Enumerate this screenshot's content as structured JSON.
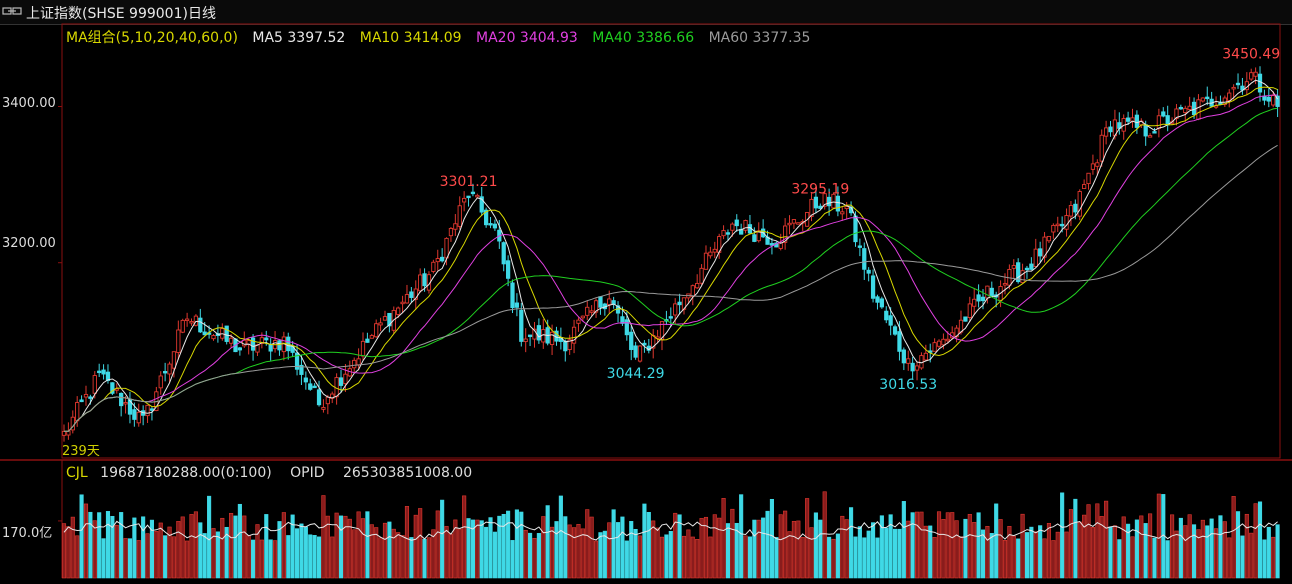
{
  "window": {
    "title": "上证指数(SHSE 999001)日线"
  },
  "legend": {
    "group": "MA组合(5,10,20,40,60,0)",
    "ma5": "MA5 3397.52",
    "ma10": "MA10 3414.09",
    "ma20": "MA20 3404.93",
    "ma40": "MA40 3386.66",
    "ma60": "MA60 3377.35"
  },
  "price_axis": {
    "tick_3400": "3400.00",
    "tick_3200": "3200.00",
    "days_label": "239天"
  },
  "volume_legend": {
    "cjl": "CJL",
    "cjl_value": "19687180288.00(0:100)",
    "opid": "OPID",
    "opid_value": "265303851008.00"
  },
  "volume_axis": {
    "tick": "170.0亿"
  },
  "annotations": {
    "high1": "3301.21",
    "low1": "3044.29",
    "high2": "3295.19",
    "low2": "3016.53",
    "high3": "3450.49"
  },
  "colors": {
    "up": "#e0382f",
    "down": "#3fd9e6",
    "ma5": "#e8e8e8",
    "ma10": "#d8d800",
    "ma20": "#e040e0",
    "ma40": "#20d020",
    "ma60": "#9a9a9a",
    "frame": "#8a1010"
  },
  "chart_data": [
    {
      "type": "candlestick",
      "title": "上证指数(SHSE 999001)日线",
      "days": 239,
      "ylim": [
        2950,
        3480
      ],
      "anchors": [
        {
          "i": 0,
          "v": 2980
        },
        {
          "i": 8,
          "v": 3055
        },
        {
          "i": 18,
          "v": 2995
        },
        {
          "i": 28,
          "v": 3130
        },
        {
          "i": 40,
          "v": 3090
        },
        {
          "i": 50,
          "v": 3100
        },
        {
          "i": 58,
          "v": 3020
        },
        {
          "i": 72,
          "v": 3120
        },
        {
          "i": 84,
          "v": 3190
        },
        {
          "i": 92,
          "v": 3290
        },
        {
          "i": 98,
          "v": 3240
        },
        {
          "i": 104,
          "v": 3110
        },
        {
          "i": 114,
          "v": 3100
        },
        {
          "i": 124,
          "v": 3160
        },
        {
          "i": 130,
          "v": 3075
        },
        {
          "i": 140,
          "v": 3150
        },
        {
          "i": 152,
          "v": 3250
        },
        {
          "i": 162,
          "v": 3230
        },
        {
          "i": 172,
          "v": 3280
        },
        {
          "i": 178,
          "v": 3270
        },
        {
          "i": 184,
          "v": 3160
        },
        {
          "i": 192,
          "v": 3070
        },
        {
          "i": 200,
          "v": 3100
        },
        {
          "i": 210,
          "v": 3160
        },
        {
          "i": 220,
          "v": 3200
        },
        {
          "i": 230,
          "v": 3270
        },
        {
          "i": 238,
          "v": 3380
        },
        {
          "i": 246,
          "v": 3370
        },
        {
          "i": 254,
          "v": 3390
        },
        {
          "i": 262,
          "v": 3410
        },
        {
          "i": 270,
          "v": 3440
        },
        {
          "i": 276,
          "v": 3400
        }
      ],
      "marked_extremes": [
        {
          "label": "3301.21",
          "kind": "high",
          "i": 92
        },
        {
          "label": "3044.29",
          "kind": "low",
          "i": 130
        },
        {
          "label": "3295.19",
          "kind": "high",
          "i": 172
        },
        {
          "label": "3016.53",
          "kind": "low",
          "i": 192
        },
        {
          "label": "3450.49",
          "kind": "high",
          "i": 270
        }
      ],
      "moving_averages": [
        {
          "name": "MA5",
          "period": 5,
          "last": 3397.52
        },
        {
          "name": "MA10",
          "period": 10,
          "last": 3414.09
        },
        {
          "name": "MA20",
          "period": 20,
          "last": 3404.93
        },
        {
          "name": "MA40",
          "period": 40,
          "last": 3386.66
        },
        {
          "name": "MA60",
          "period": 60,
          "last": 3377.35
        }
      ],
      "y_ticks": [
        3200,
        3400
      ]
    },
    {
      "type": "bar",
      "indicator": "CJL",
      "cjl": 19687180288.0,
      "opid": 265303851008.0,
      "ylim_yi": [
        0,
        280
      ],
      "y_ticks_yi": [
        170.0
      ]
    }
  ]
}
